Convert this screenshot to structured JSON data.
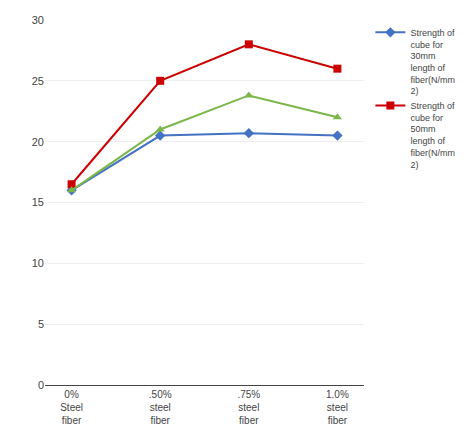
{
  "chart_data": {
    "type": "line",
    "categories": [
      "0%\nSteel\nfiber",
      ".50%\nsteel\nfiber",
      ".75%\nsteel\nfiber",
      "1.0%\nsteel\nfiber"
    ],
    "series": [
      {
        "name": "Strength of\ncube for\n30mm\nlength of\nfiber(N/mm\n2)",
        "values": [
          16,
          20.5,
          20.7,
          20.5
        ],
        "color": "#4472C4",
        "marker": "diamond"
      },
      {
        "name": "Strength of\ncube for\n50mm\nlength of\nfiber(N/mm\n2)",
        "values": [
          16.5,
          25,
          28,
          26
        ],
        "color": "#CC0000",
        "marker": "square"
      },
      {
        "values": [
          16,
          21,
          23.8,
          22
        ],
        "color": "#7AB648",
        "marker": "triangle-up"
      }
    ],
    "ylim": [
      0,
      30
    ],
    "yticks": [
      0,
      5,
      10,
      15,
      20,
      25,
      30
    ],
    "grid": true,
    "legend": "right"
  }
}
